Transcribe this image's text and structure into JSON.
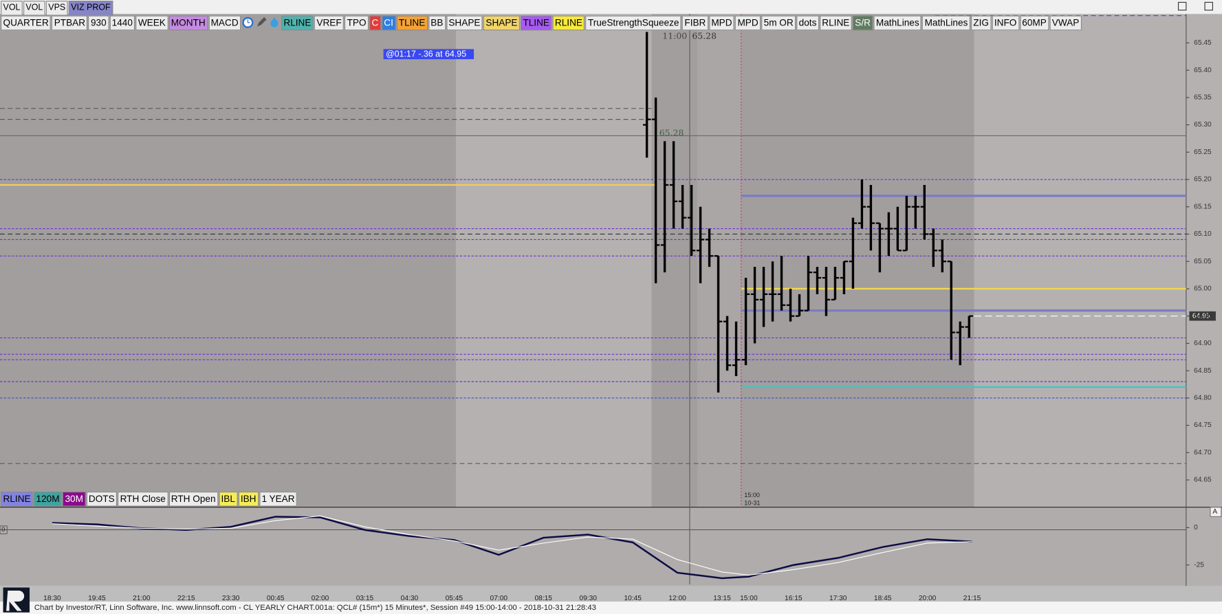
{
  "window_tabs": [
    {
      "label": "VOL",
      "color": "#ececec"
    },
    {
      "label": "VOL",
      "color": "#ececec"
    },
    {
      "label": "VPS",
      "color": "#ececec"
    },
    {
      "label": "VIZ PROF",
      "color": "#8585c8"
    }
  ],
  "toolbar_left": [
    {
      "label": "QUARTER",
      "color": "#ececec"
    },
    {
      "label": "PTBAR",
      "color": "#ececec"
    },
    {
      "label": "930",
      "color": "#ececec"
    },
    {
      "label": "1440",
      "color": "#ececec"
    },
    {
      "label": "WEEK",
      "color": "#ececec"
    },
    {
      "label": "MONTH",
      "color": "#c58be0"
    },
    {
      "label": "MACD",
      "color": "#ececec"
    }
  ],
  "toolbar_right": [
    {
      "label": "RLINE",
      "color": "#4fb3ad"
    },
    {
      "label": "VREF",
      "color": "#ececec"
    },
    {
      "label": "TPO",
      "color": "#ececec"
    },
    {
      "label": "C",
      "color": "#e23b3b"
    },
    {
      "label": "CI",
      "color": "#2f7de0"
    },
    {
      "label": "TLINE",
      "color": "#f4a236"
    },
    {
      "label": "BB",
      "color": "#ececec"
    },
    {
      "label": "SHAPE",
      "color": "#ececec"
    },
    {
      "label": "SHAPE",
      "color": "#f2d46a"
    },
    {
      "label": "TLINE",
      "color": "#a75bf0"
    },
    {
      "label": "RLINE",
      "color": "#f7ea3a"
    },
    {
      "label": "TrueStrengthSqueeze",
      "color": "#ececec"
    },
    {
      "label": "FIBR",
      "color": "#ececec"
    },
    {
      "label": "MPD",
      "color": "#ececec"
    },
    {
      "label": "MPD",
      "color": "#ececec"
    },
    {
      "label": "5m OR",
      "color": "#ececec"
    },
    {
      "label": "dots",
      "color": "#ececec"
    },
    {
      "label": "RLINE",
      "color": "#ececec"
    },
    {
      "label": "S/R",
      "color": "#5f7d60"
    },
    {
      "label": "MathLines",
      "color": "#ececec"
    },
    {
      "label": "MathLines",
      "color": "#ececec"
    },
    {
      "label": "ZIG",
      "color": "#ececec"
    },
    {
      "label": "INFO",
      "color": "#ececec"
    },
    {
      "label": "60MP",
      "color": "#ececec"
    },
    {
      "label": "VWAP",
      "color": "#ececec"
    }
  ],
  "studies_bar": [
    {
      "label": "RLINE",
      "color": "#8383e2"
    },
    {
      "label": "120M",
      "color": "#3fa3a0"
    },
    {
      "label": "30M",
      "color": "#8a0a8a"
    },
    {
      "label": "DOTS",
      "color": "#ececec"
    },
    {
      "label": "RTH Close",
      "color": "#ececec"
    },
    {
      "label": "RTH Open",
      "color": "#ececec"
    },
    {
      "label": "IBL",
      "color": "#f6ec5a"
    },
    {
      "label": "IBH",
      "color": "#f6ec5a"
    },
    {
      "label": "1 YEAR",
      "color": "#ececec"
    }
  ],
  "footer": "Chart by Investor/RT, Linn Software, Inc. www.linnsoft.com - CL YEARLY CHART.001a: QCL# (15m*) 15 Minutes*, Session #49 15:00-14:00 - 2018-10-31 21:28:43",
  "chart_data": [
    {
      "type": "ohlc",
      "color": "#000000",
      "open": [
        65.3,
        65.31,
        65.08,
        65.19,
        65.16,
        65.13,
        65.07,
        65.09,
        65.06,
        64.94,
        64.86,
        64.87,
        64.99,
        64.98,
        64.99,
        64.99,
        64.97,
        64.95,
        64.96,
        65.03,
        65.02,
        64.98,
        65.02,
        65.05,
        65.12,
        65.15,
        65.12,
        65.11,
        65.11,
        65.07,
        65.15,
        65.15,
        65.1,
        65.07,
        65.05,
        64.92,
        64.93
      ],
      "high": [
        65.47,
        65.35,
        65.27,
        65.27,
        65.19,
        65.19,
        65.15,
        65.11,
        65.06,
        64.95,
        64.94,
        65.02,
        65.04,
        65.04,
        65.05,
        65.06,
        65.0,
        64.99,
        65.06,
        65.04,
        65.04,
        65.04,
        65.05,
        65.13,
        65.2,
        65.19,
        65.12,
        65.14,
        65.15,
        65.17,
        65.17,
        65.19,
        65.11,
        65.09,
        65.05,
        64.94,
        64.95
      ],
      "low": [
        65.24,
        65.01,
        65.03,
        65.11,
        65.11,
        65.06,
        65.01,
        65.04,
        64.81,
        64.85,
        64.84,
        64.86,
        64.9,
        64.93,
        64.94,
        64.96,
        64.94,
        64.95,
        64.96,
        64.99,
        64.95,
        64.98,
        64.99,
        65.0,
        65.11,
        65.07,
        65.03,
        65.06,
        65.07,
        65.07,
        65.11,
        65.09,
        65.04,
        65.03,
        64.87,
        64.86,
        64.91
      ],
      "close": [
        65.31,
        65.08,
        65.19,
        65.16,
        65.13,
        65.07,
        65.09,
        65.06,
        64.94,
        64.86,
        64.87,
        64.99,
        64.98,
        64.99,
        64.99,
        64.97,
        64.95,
        64.96,
        65.03,
        65.02,
        64.98,
        65.02,
        65.05,
        65.12,
        65.15,
        65.12,
        65.11,
        65.11,
        65.07,
        65.15,
        65.15,
        65.1,
        65.07,
        65.05,
        64.92,
        64.93,
        64.95
      ],
      "ylim": [
        64.6,
        65.5
      ],
      "yticks": [
        {
          "value": 64.65,
          "label": "64.65"
        },
        {
          "value": 64.7,
          "label": "64.70"
        },
        {
          "value": 64.75,
          "label": "64.75"
        },
        {
          "value": 64.8,
          "label": "64.80"
        },
        {
          "value": 64.85,
          "label": "64.85"
        },
        {
          "value": 64.9,
          "label": "64.90"
        },
        64.95,
        {
          "value": 65,
          "label": "65.00"
        },
        65.05,
        {
          "value": 65.1,
          "label": "65.10"
        },
        65.15,
        {
          "value": 65.2,
          "label": "65.20"
        },
        65.25,
        {
          "value": 65.3,
          "label": "65.30"
        },
        65.35,
        {
          "value": 65.4,
          "label": "65.40"
        },
        65.45
      ],
      "levels": [
        {
          "price": 65.33,
          "color": "#5a5a5a",
          "style": "dash",
          "span": "prior"
        },
        {
          "price": 65.31,
          "color": "#5a5a5a",
          "style": "dash",
          "span": "prior"
        },
        {
          "price": 65.19,
          "color": "#f2cd5a",
          "style": "solid",
          "span": "prior"
        },
        {
          "price": 65.1,
          "color": "#303030",
          "style": "dash",
          "span": "all"
        },
        {
          "price": 65.2,
          "color": "#6a30d8",
          "style": "dot",
          "span": "all"
        },
        {
          "price": 65.11,
          "color": "#6a30d8",
          "style": "dot",
          "span": "all"
        },
        {
          "price": 65.09,
          "color": "#6a30d8",
          "style": "dot",
          "span": "all"
        },
        {
          "price": 65.06,
          "color": "#6a30d8",
          "style": "dot",
          "span": "all"
        },
        {
          "price": 64.91,
          "color": "#6a30d8",
          "style": "dot",
          "span": "all"
        },
        {
          "price": 64.88,
          "color": "#6a30d8",
          "style": "dot",
          "span": "all"
        },
        {
          "price": 64.87,
          "color": "#6a30d8",
          "style": "dot",
          "span": "all"
        },
        {
          "price": 64.83,
          "color": "#6a30d8",
          "style": "dot",
          "span": "all"
        },
        {
          "price": 64.8,
          "color": "#3050d8",
          "style": "dot",
          "span": "all"
        },
        {
          "price": 64.68,
          "color": "#5a5a5a",
          "style": "dash",
          "span": "all"
        },
        {
          "price": 65.17,
          "color": "#7c7cc4",
          "style": "thick",
          "span": "session"
        },
        {
          "price": 64.96,
          "color": "#7c7cc4",
          "style": "thick",
          "span": "session"
        },
        {
          "price": 65.0,
          "color": "#f2d84a",
          "style": "solid",
          "span": "session"
        },
        {
          "price": 64.82,
          "color": "#38c8c8",
          "style": "solid",
          "span": "session"
        },
        {
          "price": 65.5,
          "color": "#6a30d8",
          "style": "dash",
          "span": "right"
        }
      ],
      "last_price": 64.95,
      "crosshair": {
        "time": "11:00",
        "price": 65.28
      },
      "annotation": "@01:17  -.36 at 64.95",
      "session_label": {
        "time": "15:00",
        "date": "10-31"
      }
    },
    {
      "type": "line",
      "categories": [
        "18:30",
        "19:45",
        "21:00",
        "22:15",
        "23:30",
        "00:45",
        "02:00",
        "03:15",
        "04:30",
        "05:45",
        "07:00",
        "08:15",
        "09:30",
        "10:45",
        "12:00",
        "13:15",
        "15:00",
        "16:15",
        "17:30",
        "18:45",
        "20:00",
        "21:15"
      ],
      "series": [
        {
          "color": "#0c0c44",
          "values": [
            3.1,
            2.1,
            -0.5,
            -1.6,
            0.5,
            7.3,
            6.8,
            -1.6,
            -5.7,
            -8.3,
            -18.2,
            -6.8,
            -4.7,
            -9.9,
            -30.2,
            -33.9,
            -32.8,
            -25,
            -20.3,
            -13,
            -7.8,
            -9.4
          ]
        },
        {
          "color": "#ffffff",
          "values": [
            2.6,
            1.0,
            -0.5,
            -1.0,
            -0.5,
            4.7,
            7.8,
            0.5,
            -4.7,
            -8.9,
            -15.1,
            -10.4,
            -6.3,
            -7.8,
            -21.4,
            -29.7,
            -31.8,
            -28.1,
            -23.4,
            -16.7,
            -10.4,
            -9.4
          ]
        }
      ],
      "ylim": [
        -38,
        11.5
      ],
      "yticks": [
        0,
        -25
      ],
      "pane_label": "0",
      "corner_label": "A"
    }
  ]
}
